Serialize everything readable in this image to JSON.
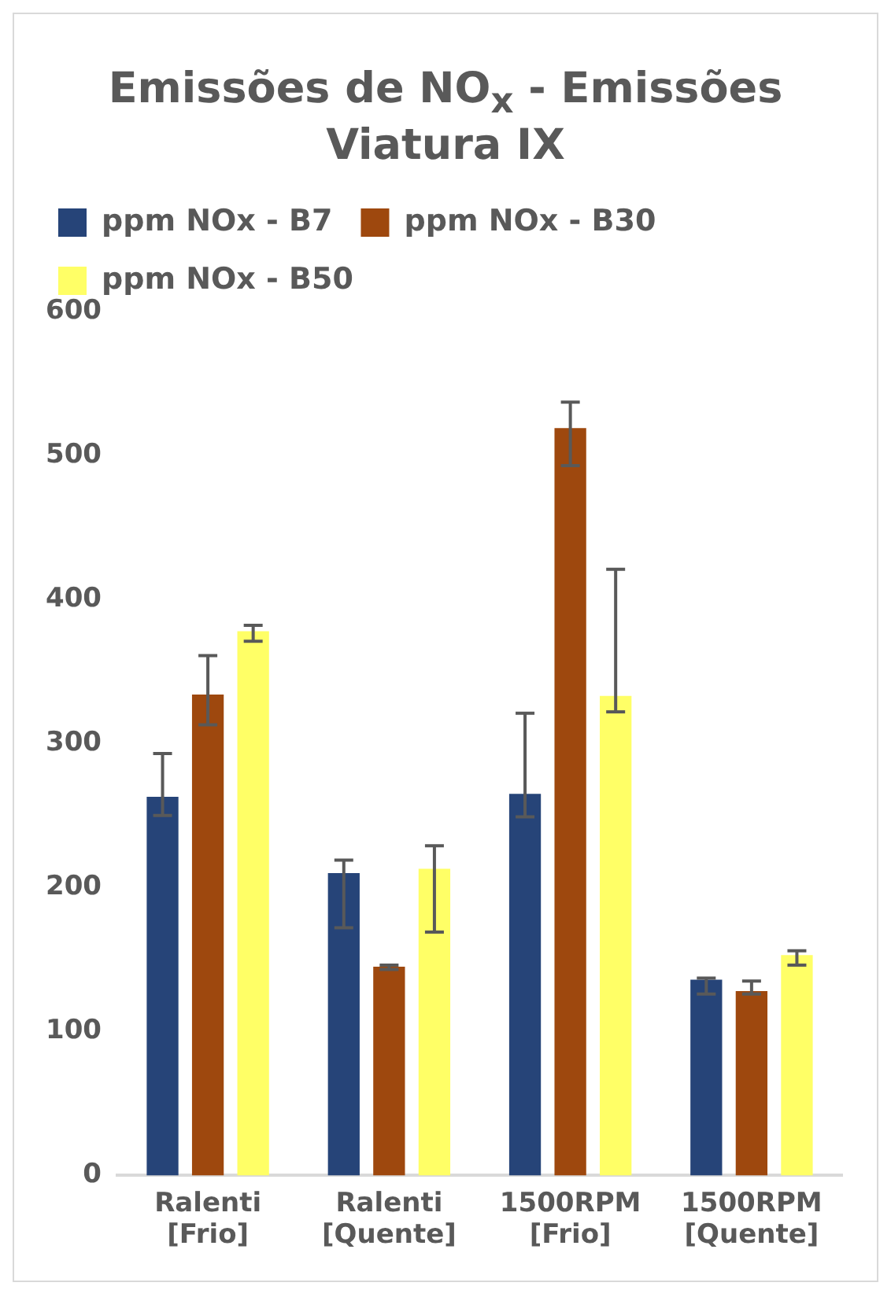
{
  "chart_data": {
    "type": "bar",
    "title": "Emissões de NO$_{x}$ - Emissões Viatura IX",
    "categories": [
      "Ralenti [Frio]",
      "Ralenti [Quente]",
      "1500RPM [Frio]",
      "1500RPM [Quente]"
    ],
    "series": [
      {
        "name": "ppm NOx - B7",
        "color": "#264478",
        "values": [
          263,
          210,
          265,
          136
        ],
        "errors": [
          [
            250,
            293
          ],
          [
            172,
            219
          ],
          [
            249,
            321
          ],
          [
            126,
            137
          ]
        ]
      },
      {
        "name": "ppm NOx - B30",
        "color": "#9e480e",
        "values": [
          334,
          145,
          519,
          128
        ],
        "errors": [
          [
            313,
            361
          ],
          [
            143,
            146
          ],
          [
            493,
            537
          ],
          [
            126,
            135
          ]
        ]
      },
      {
        "name": "ppm NOx - B50",
        "color": "#ffff66",
        "values": [
          378,
          213,
          333,
          153
        ],
        "errors": [
          [
            371,
            382
          ],
          [
            169,
            229
          ],
          [
            322,
            421
          ],
          [
            146,
            156
          ]
        ]
      }
    ],
    "ylim": [
      0,
      600
    ],
    "yticks": [
      0,
      100,
      200,
      300,
      400,
      500,
      600
    ],
    "grid": false,
    "legend": "top"
  }
}
